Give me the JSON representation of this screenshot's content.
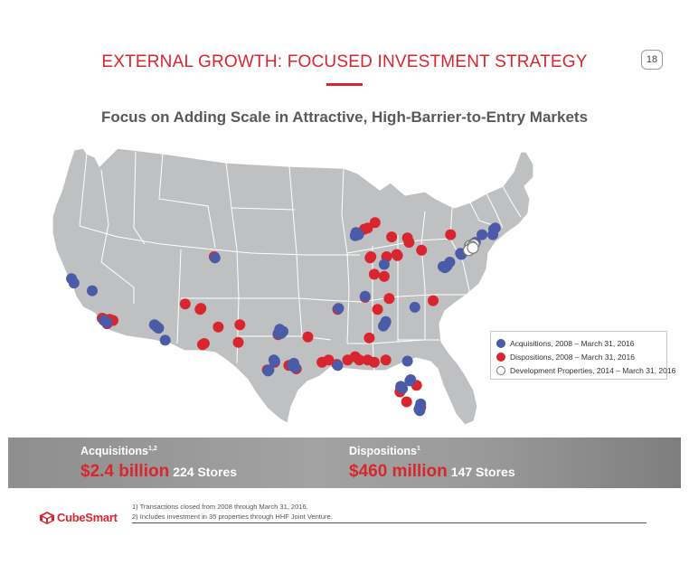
{
  "header": {
    "title": "EXTERNAL GROWTH: FOCUSED INVESTMENT STRATEGY",
    "page_number": "18"
  },
  "subtitle": "Focus on Adding Scale in Attractive, High-Barrier-to-Entry Markets",
  "colors": {
    "acquisition": "#4a5ba8",
    "disposition": "#d9262e",
    "development": "#ffffff",
    "land": "#bfc0c2",
    "border": "#ffffff",
    "brand_red": "#d9262e"
  },
  "legend": {
    "acquisitions": "Acquisitions, 2008 – March 31, 2016",
    "dispositions": "Dispositions, 2008 – March 31, 2016",
    "development": "Development Properties, 2014 – March 31, 2016"
  },
  "stats": {
    "acquisitions": {
      "label": "Acquisitions",
      "sup": "1,2",
      "amount": "$2.4 billion",
      "count": "224 Stores"
    },
    "dispositions": {
      "label": "Dispositions",
      "sup": "1",
      "amount": "$460 million",
      "count": "147 Stores"
    }
  },
  "footnotes": [
    "1) Transactions closed from 2008 through March 31, 2016.",
    "2) Includes investment in 35 properties through HHF Joint Venture."
  ],
  "logo": {
    "text": "CubeSmart",
    "icon": "cube-icon"
  },
  "markers": {
    "acquisitions": [
      [
        -118.3,
        34.0
      ],
      [
        -117.9,
        33.8
      ],
      [
        -119.7,
        36.7
      ],
      [
        -121.9,
        37.4
      ],
      [
        -122.2,
        37.8
      ],
      [
        -112.0,
        33.5
      ],
      [
        -111.9,
        33.4
      ],
      [
        -111.7,
        33.3
      ],
      [
        -112.2,
        33.6
      ],
      [
        -110.9,
        32.2
      ],
      [
        -104.9,
        39.7
      ],
      [
        -97.0,
        32.8
      ],
      [
        -96.8,
        32.9
      ],
      [
        -97.3,
        32.8
      ],
      [
        -96.7,
        33.0
      ],
      [
        -97.1,
        33.2
      ],
      [
        -95.4,
        29.8
      ],
      [
        -95.6,
        29.9
      ],
      [
        -95.2,
        29.7
      ],
      [
        -95.4,
        30.1
      ],
      [
        -97.7,
        30.3
      ],
      [
        -97.8,
        30.4
      ],
      [
        -98.5,
        29.4
      ],
      [
        -98.4,
        29.5
      ],
      [
        -90.1,
        29.9
      ],
      [
        -90.0,
        35.1
      ],
      [
        -87.7,
        41.9
      ],
      [
        -87.9,
        42.0
      ],
      [
        -87.6,
        41.8
      ],
      [
        -88.0,
        41.7
      ],
      [
        -84.4,
        33.7
      ],
      [
        -84.3,
        33.9
      ],
      [
        -84.6,
        33.5
      ],
      [
        -86.8,
        36.2
      ],
      [
        -80.8,
        35.2
      ],
      [
        -77.0,
        38.9
      ],
      [
        -77.2,
        38.8
      ],
      [
        -76.9,
        39.0
      ],
      [
        -76.6,
        39.3
      ],
      [
        -77.4,
        38.9
      ],
      [
        -74.0,
        40.7
      ],
      [
        -73.9,
        40.8
      ],
      [
        -73.8,
        40.9
      ],
      [
        -74.2,
        40.8
      ],
      [
        -73.7,
        41.0
      ],
      [
        -73.5,
        41.1
      ],
      [
        -71.1,
        42.4
      ],
      [
        -71.3,
        42.3
      ],
      [
        -71.4,
        41.8
      ],
      [
        -72.7,
        41.8
      ],
      [
        -75.2,
        40.0
      ],
      [
        -75.3,
        40.1
      ],
      [
        -81.7,
        30.3
      ],
      [
        -82.5,
        28.0
      ],
      [
        -82.3,
        27.8
      ],
      [
        -81.4,
        28.5
      ],
      [
        -81.3,
        28.6
      ],
      [
        -80.2,
        26.1
      ],
      [
        -80.1,
        26.4
      ],
      [
        -80.2,
        25.8
      ],
      [
        -80.3,
        25.9
      ],
      [
        -84.5,
        39.1
      ]
    ],
    "dispositions": [
      [
        -118.2,
        34.1
      ],
      [
        -118.5,
        34.2
      ],
      [
        -117.6,
        34.1
      ],
      [
        -117.2,
        34.0
      ],
      [
        -117.9,
        33.7
      ],
      [
        -118.0,
        34.0
      ],
      [
        -106.6,
        35.1
      ],
      [
        -106.7,
        35.0
      ],
      [
        -106.4,
        31.8
      ],
      [
        -106.2,
        31.9
      ],
      [
        -108.5,
        35.5
      ],
      [
        -104.5,
        33.4
      ],
      [
        -102.1,
        32.0
      ],
      [
        -101.9,
        33.6
      ],
      [
        -105.0,
        39.8
      ],
      [
        -97.3,
        32.7
      ],
      [
        -96.0,
        29.9
      ],
      [
        -97.7,
        30.2
      ],
      [
        -98.6,
        29.5
      ],
      [
        -95.1,
        29.6
      ],
      [
        -93.7,
        32.5
      ],
      [
        -92.0,
        30.2
      ],
      [
        -91.2,
        30.4
      ],
      [
        -90.2,
        30.0
      ],
      [
        -88.9,
        30.4
      ],
      [
        -88.0,
        30.7
      ],
      [
        -86.5,
        30.4
      ],
      [
        -87.5,
        30.4
      ],
      [
        -85.7,
        30.2
      ],
      [
        -84.3,
        30.4
      ],
      [
        -86.3,
        32.4
      ],
      [
        -90.1,
        35.0
      ],
      [
        -86.8,
        36.1
      ],
      [
        -85.3,
        35.0
      ],
      [
        -83.9,
        36.0
      ],
      [
        -87.6,
        41.9
      ],
      [
        -86.1,
        39.8
      ],
      [
        -86.2,
        39.7
      ],
      [
        -85.7,
        38.2
      ],
      [
        -84.5,
        38.0
      ],
      [
        -86.9,
        42.3
      ],
      [
        -86.5,
        42.4
      ],
      [
        -85.6,
        42.9
      ],
      [
        -83.0,
        40.0
      ],
      [
        -82.9,
        39.9
      ],
      [
        -81.7,
        41.5
      ],
      [
        -81.5,
        41.1
      ],
      [
        -80.0,
        40.4
      ],
      [
        -84.2,
        39.8
      ],
      [
        -83.6,
        41.6
      ],
      [
        -78.6,
        35.8
      ],
      [
        -76.5,
        41.8
      ],
      [
        -82.5,
        27.8
      ],
      [
        -82.6,
        27.5
      ],
      [
        -81.3,
        28.6
      ],
      [
        -80.6,
        28.1
      ],
      [
        -80.1,
        26.1
      ],
      [
        -80.2,
        25.9
      ],
      [
        -81.8,
        26.6
      ]
    ],
    "development": [
      [
        -74.1,
        40.8
      ],
      [
        -73.7,
        40.9
      ],
      [
        -73.9,
        40.7
      ],
      [
        -74.3,
        40.4
      ],
      [
        -73.8,
        40.6
      ]
    ]
  }
}
